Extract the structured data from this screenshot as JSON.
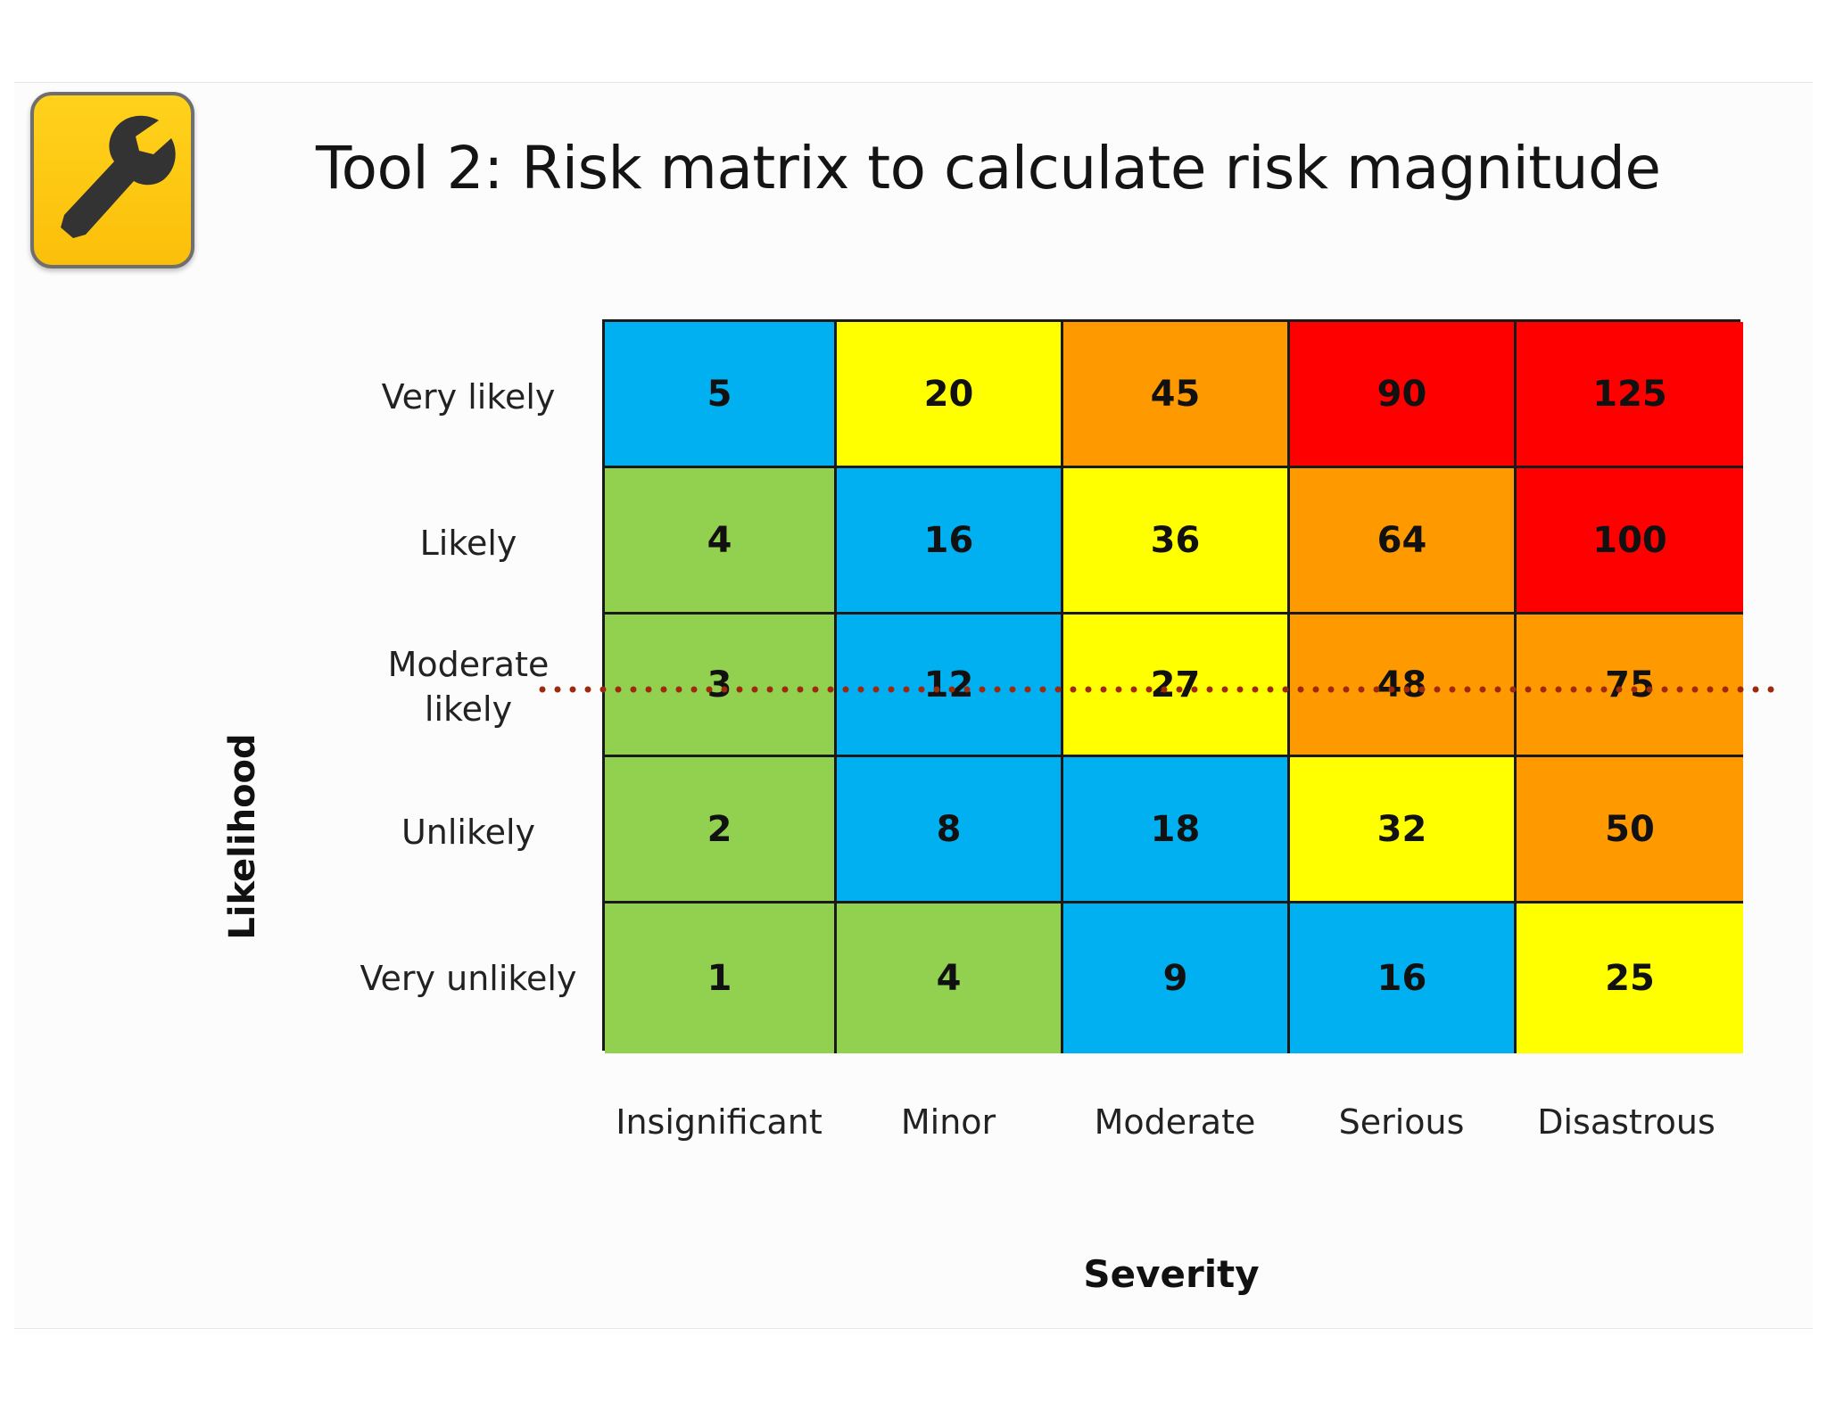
{
  "title": "Tool 2: Risk matrix to calculate risk magnitude",
  "icon": "wrench-icon",
  "y_axis_label": "Likelihood",
  "x_axis_label": "Severity",
  "likelihood_levels": [
    "Very likely",
    "Likely",
    "Moderate likely",
    "Unlikely",
    "Very unlikely"
  ],
  "severity_levels": [
    "Insignificant",
    "Minor",
    "Moderate",
    "Serious",
    "Disastrous"
  ],
  "matrix": [
    [
      "5",
      "20",
      "45",
      "90",
      "125"
    ],
    [
      "4",
      "16",
      "36",
      "64",
      "100"
    ],
    [
      "3",
      "12",
      "27",
      "48",
      "75"
    ],
    [
      "2",
      "8",
      "18",
      "32",
      "50"
    ],
    [
      "1",
      "4",
      "9",
      "16",
      "25"
    ]
  ],
  "cell_colors": [
    [
      "#00b0f0",
      "#ffff00",
      "#ff9900",
      "#ff0000",
      "#ff0000"
    ],
    [
      "#92d050",
      "#00b0f0",
      "#ffff00",
      "#ff9900",
      "#ff0000"
    ],
    [
      "#92d050",
      "#00b0f0",
      "#ffff00",
      "#ff9900",
      "#ff9900"
    ],
    [
      "#92d050",
      "#00b0f0",
      "#00b0f0",
      "#ffff00",
      "#ff9900"
    ],
    [
      "#92d050",
      "#92d050",
      "#00b0f0",
      "#00b0f0",
      "#ffff00"
    ]
  ],
  "colors": {
    "icon_background": "#fcc80f",
    "dotted_line": "#9e2a0e"
  }
}
